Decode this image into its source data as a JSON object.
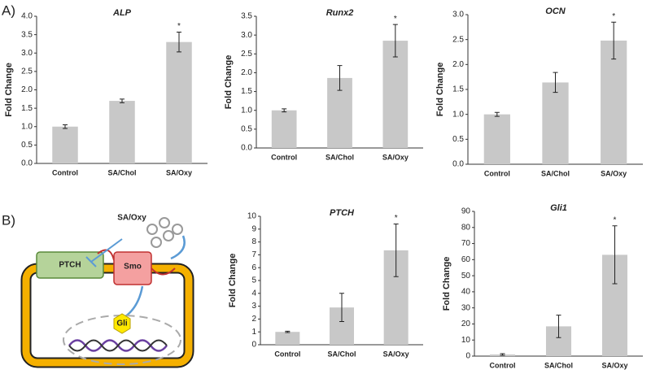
{
  "panels": [
    "A)",
    "B)"
  ],
  "diagram": {
    "ligand": "SA/Oxy",
    "receptor": "PTCH",
    "smoothened": "Smo",
    "factor": "Gli"
  },
  "chart_data": [
    {
      "type": "bar",
      "title": "ALP",
      "ylabel": "Fold Change",
      "categories": [
        "Control",
        "SA/Chol",
        "SA/Oxy"
      ],
      "values": [
        1.0,
        1.7,
        3.3
      ],
      "errors": [
        0.05,
        0.05,
        0.27
      ],
      "annotations": [
        null,
        null,
        "*"
      ],
      "color": "#c8c8c8",
      "ylim": [
        0,
        4
      ],
      "yticks": [
        {
          "value": 0,
          "label": "0.0"
        },
        0.5,
        {
          "value": 1,
          "label": "1.0"
        },
        1.5,
        {
          "value": 2,
          "label": "2.0"
        },
        2.5,
        {
          "value": 3,
          "label": "3.0"
        },
        3.5,
        {
          "value": 4,
          "label": "4.0"
        }
      ]
    },
    {
      "type": "bar",
      "title": "Runx2",
      "ylabel": "Fold Change",
      "categories": [
        "Control",
        "SA/Chol",
        "SA/Oxy"
      ],
      "values": [
        1.0,
        1.86,
        2.85
      ],
      "errors": [
        0.04,
        0.33,
        0.43
      ],
      "annotations": [
        null,
        null,
        "*"
      ],
      "color": "#c8c8c8",
      "ylim": [
        0,
        3.5
      ],
      "yticks": [
        {
          "value": 0,
          "label": "0.0"
        },
        0.5,
        {
          "value": 1,
          "label": "1.0"
        },
        1.5,
        {
          "value": 2,
          "label": "2.0"
        },
        2.5,
        {
          "value": 3,
          "label": "3.0"
        },
        3.5
      ]
    },
    {
      "type": "bar",
      "title": "OCN",
      "ylabel": "Fold Change",
      "categories": [
        "Control",
        "SA/Chol",
        "SA/Oxy"
      ],
      "values": [
        1.0,
        1.64,
        2.48
      ],
      "errors": [
        0.04,
        0.2,
        0.37
      ],
      "annotations": [
        null,
        null,
        "*"
      ],
      "color": "#c8c8c8",
      "ylim": [
        0,
        3
      ],
      "yticks": [
        {
          "value": 0,
          "label": "0.0"
        },
        0.5,
        {
          "value": 1,
          "label": "1.0"
        },
        1.5,
        {
          "value": 2,
          "label": "2.0"
        },
        2.5,
        {
          "value": 3,
          "label": "3.0"
        }
      ]
    },
    {
      "type": "bar",
      "title": "PTCH",
      "ylabel": "Fold Change",
      "categories": [
        "Control",
        "SA/Chol",
        "SA/Oxy"
      ],
      "values": [
        1.0,
        2.9,
        7.35
      ],
      "errors": [
        0.05,
        1.1,
        2.05
      ],
      "annotations": [
        null,
        null,
        "*"
      ],
      "color": "#c8c8c8",
      "ylim": [
        0,
        10
      ],
      "yticks": [
        0,
        1,
        2,
        3,
        4,
        5,
        6,
        7,
        8,
        9,
        10
      ]
    },
    {
      "type": "bar",
      "title": "Gli1",
      "ylabel": "Fold Change",
      "categories": [
        "Control",
        "SA/Chol",
        "SA/Oxy"
      ],
      "values": [
        1,
        18.5,
        63
      ],
      "errors": [
        0.5,
        7,
        18
      ],
      "annotations": [
        null,
        null,
        "*"
      ],
      "color": "#c8c8c8",
      "ylim": [
        0,
        90
      ],
      "yticks": [
        0,
        10,
        20,
        30,
        40,
        50,
        60,
        70,
        80,
        90
      ]
    }
  ]
}
